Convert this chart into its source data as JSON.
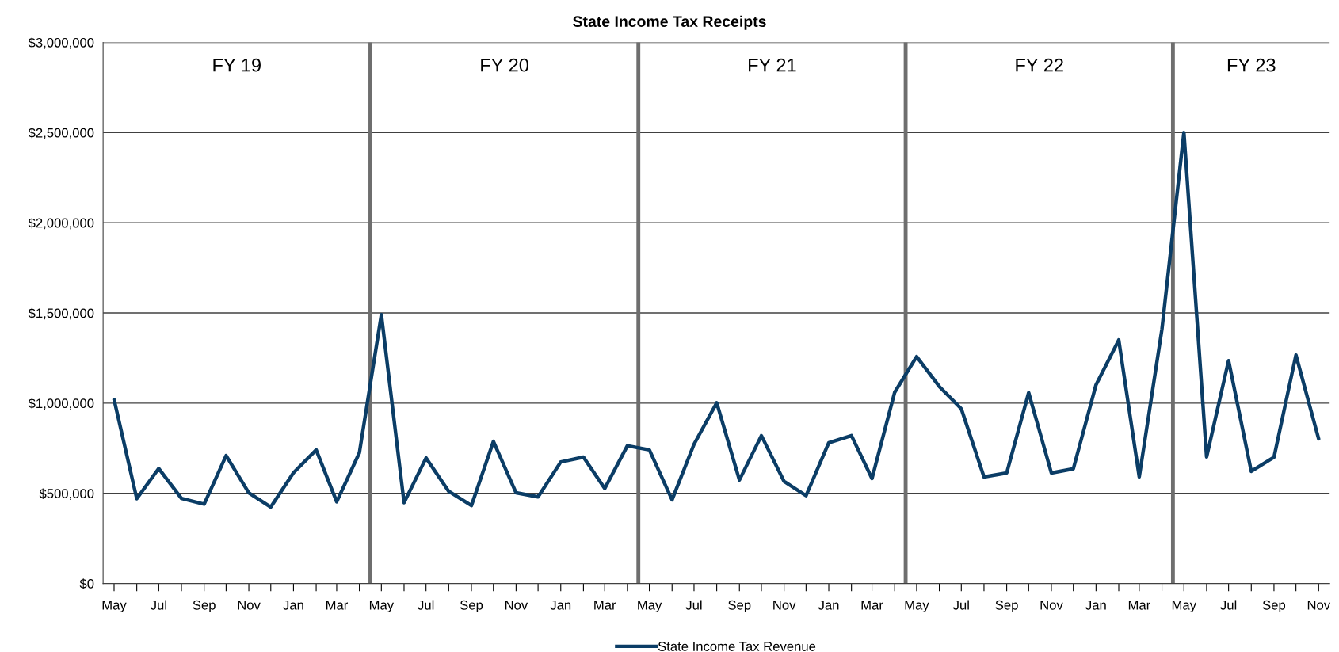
{
  "chart_data": {
    "type": "line",
    "title": "State Income Tax Receipts",
    "x": [
      "2018-05",
      "2018-06",
      "2018-07",
      "2018-08",
      "2018-09",
      "2018-10",
      "2018-11",
      "2018-12",
      "2019-01",
      "2019-02",
      "2019-03",
      "2019-04",
      "2019-05",
      "2019-06",
      "2019-07",
      "2019-08",
      "2019-09",
      "2019-10",
      "2019-11",
      "2019-12",
      "2020-01",
      "2020-02",
      "2020-03",
      "2020-04",
      "2020-05",
      "2020-06",
      "2020-07",
      "2020-08",
      "2020-09",
      "2020-10",
      "2020-11",
      "2020-12",
      "2021-01",
      "2021-02",
      "2021-03",
      "2021-04",
      "2021-05",
      "2021-06",
      "2021-07",
      "2021-08",
      "2021-09",
      "2021-10",
      "2021-11",
      "2021-12",
      "2022-01",
      "2022-02",
      "2022-03",
      "2022-04",
      "2022-05",
      "2022-06",
      "2022-07",
      "2022-08",
      "2022-09",
      "2022-10",
      "2022-11"
    ],
    "series": [
      {
        "name": "State Income Tax Revenue",
        "color": "#0b3d66",
        "values": [
          1020000,
          470000,
          638000,
          472000,
          440000,
          709000,
          503000,
          424000,
          614000,
          741000,
          453000,
          725000,
          1490000,
          448000,
          696000,
          511000,
          432000,
          788000,
          503000,
          480000,
          674000,
          701000,
          527000,
          764000,
          741000,
          464000,
          772000,
          1002000,
          574000,
          820000,
          566000,
          487000,
          780000,
          820000,
          582000,
          1060000,
          1258000,
          1092000,
          969000,
          591000,
          613000,
          1058000,
          613000,
          636000,
          1102000,
          1350000,
          591000,
          1410000,
          2500000,
          702000,
          1236000,
          622000,
          700000,
          1267000,
          802000
        ]
      }
    ],
    "xlim": [
      "2018-04-16",
      "2022-11-16"
    ],
    "xticks": [
      {
        "value": "2018-05",
        "label": "May"
      },
      {
        "value": "2018-06",
        "label": null
      },
      {
        "value": "2018-07",
        "label": "Jul"
      },
      {
        "value": "2018-08",
        "label": null
      },
      {
        "value": "2018-09",
        "label": "Sep"
      },
      {
        "value": "2018-10",
        "label": null
      },
      {
        "value": "2018-11",
        "label": "Nov"
      },
      {
        "value": "2018-12",
        "label": null
      },
      {
        "value": "2019-01",
        "label": "Jan"
      },
      {
        "value": "2019-02",
        "label": null
      },
      {
        "value": "2019-03",
        "label": "Mar"
      },
      {
        "value": "2019-04",
        "label": null
      },
      {
        "value": "2019-05",
        "label": "May"
      },
      {
        "value": "2019-06",
        "label": null
      },
      {
        "value": "2019-07",
        "label": "Jul"
      },
      {
        "value": "2019-08",
        "label": null
      },
      {
        "value": "2019-09",
        "label": "Sep"
      },
      {
        "value": "2019-10",
        "label": null
      },
      {
        "value": "2019-11",
        "label": "Nov"
      },
      {
        "value": "2019-12",
        "label": null
      },
      {
        "value": "2020-01",
        "label": "Jan"
      },
      {
        "value": "2020-02",
        "label": null
      },
      {
        "value": "2020-03",
        "label": "Mar"
      },
      {
        "value": "2020-04",
        "label": null
      },
      {
        "value": "2020-05",
        "label": "May"
      },
      {
        "value": "2020-06",
        "label": null
      },
      {
        "value": "2020-07",
        "label": "Jul"
      },
      {
        "value": "2020-08",
        "label": null
      },
      {
        "value": "2020-09",
        "label": "Sep"
      },
      {
        "value": "2020-10",
        "label": null
      },
      {
        "value": "2020-11",
        "label": "Nov"
      },
      {
        "value": "2020-12",
        "label": null
      },
      {
        "value": "2021-01",
        "label": "Jan"
      },
      {
        "value": "2021-02",
        "label": null
      },
      {
        "value": "2021-03",
        "label": "Mar"
      },
      {
        "value": "2021-04",
        "label": null
      },
      {
        "value": "2021-05",
        "label": "May"
      },
      {
        "value": "2021-06",
        "label": null
      },
      {
        "value": "2021-07",
        "label": "Jul"
      },
      {
        "value": "2021-08",
        "label": null
      },
      {
        "value": "2021-09",
        "label": "Sep"
      },
      {
        "value": "2021-10",
        "label": null
      },
      {
        "value": "2021-11",
        "label": "Nov"
      },
      {
        "value": "2021-12",
        "label": null
      },
      {
        "value": "2022-01",
        "label": "Jan"
      },
      {
        "value": "2022-02",
        "label": null
      },
      {
        "value": "2022-03",
        "label": "Mar"
      },
      {
        "value": "2022-04",
        "label": null
      },
      {
        "value": "2022-05",
        "label": "May"
      },
      {
        "value": "2022-06",
        "label": null
      },
      {
        "value": "2022-07",
        "label": "Jul"
      },
      {
        "value": "2022-08",
        "label": null
      },
      {
        "value": "2022-09",
        "label": "Sep"
      },
      {
        "value": "2022-10",
        "label": null
      },
      {
        "value": "2022-11",
        "label": "Nov"
      }
    ],
    "ylim": [
      0,
      3000000
    ],
    "yticks": [
      {
        "value": 0,
        "label": "$0"
      },
      {
        "value": 500000,
        "label": "$500,000"
      },
      {
        "value": 1000000,
        "label": "$1,000,000"
      },
      {
        "value": 1500000,
        "label": "$1,500,000"
      },
      {
        "value": 2000000,
        "label": "$2,000,000"
      },
      {
        "value": 2500000,
        "label": "$2,500,000"
      },
      {
        "value": 3000000,
        "label": "$3,000,000"
      }
    ],
    "ref_lines": [
      {
        "axis": "x",
        "value": "2019-04-16",
        "color": "#6e6e6e"
      },
      {
        "axis": "x",
        "value": "2020-04-16",
        "color": "#6e6e6e"
      },
      {
        "axis": "x",
        "value": "2021-04-16",
        "color": "#6e6e6e"
      },
      {
        "axis": "x",
        "value": "2022-04-16",
        "color": "#6e6e6e"
      }
    ],
    "annotations": [
      "FY 19",
      "FY 20",
      "FY 21",
      "FY 22",
      "FY 23"
    ],
    "grid": "y",
    "legend": "bottom",
    "marker": "none",
    "line_style": "solid"
  }
}
